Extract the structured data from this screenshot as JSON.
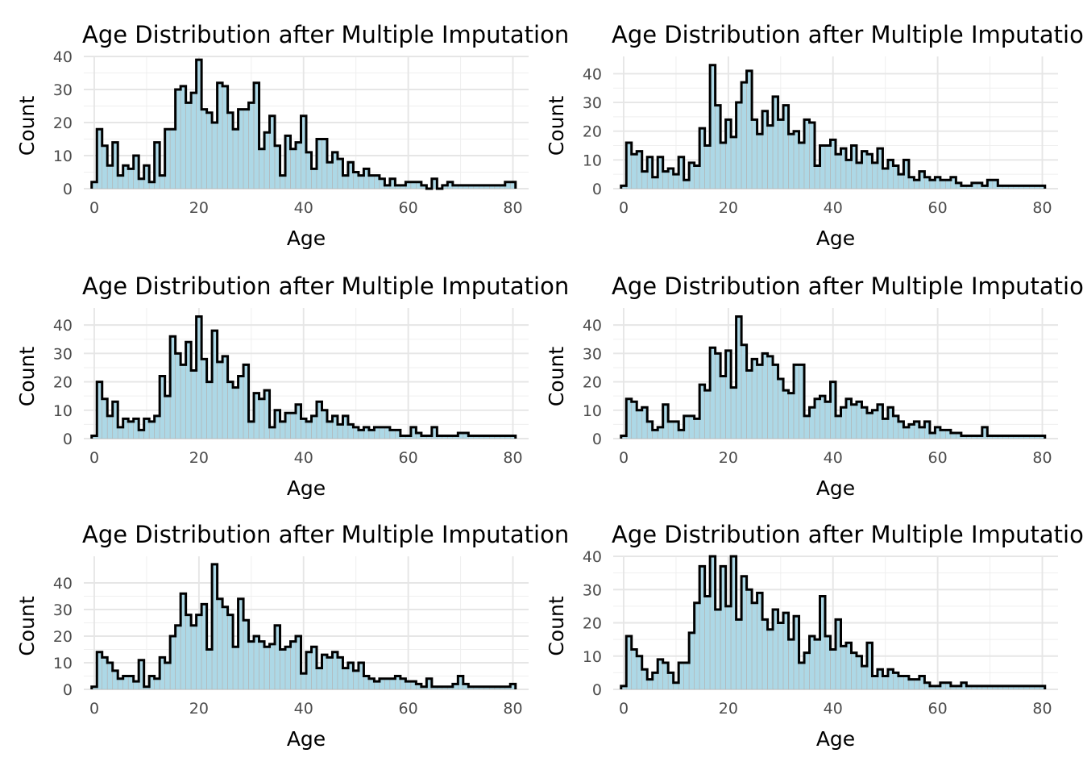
{
  "chart_data": [
    {
      "type": "bar",
      "title": "Age Distribution after Multiple Imputation",
      "xlabel": "Age",
      "ylabel": "Count",
      "xlim": [
        -2,
        83
      ],
      "ylim": [
        0,
        40
      ],
      "xticks": [
        0,
        20,
        40,
        60,
        80
      ],
      "yticks": [
        0,
        10,
        20,
        30,
        40
      ],
      "grid": true,
      "bin_width": 1,
      "x": [
        0,
        1,
        2,
        3,
        4,
        5,
        6,
        7,
        8,
        9,
        10,
        11,
        12,
        13,
        14,
        15,
        16,
        17,
        18,
        19,
        20,
        21,
        22,
        23,
        24,
        25,
        26,
        27,
        28,
        29,
        30,
        31,
        32,
        33,
        34,
        35,
        36,
        37,
        38,
        39,
        40,
        41,
        42,
        43,
        44,
        45,
        46,
        47,
        48,
        49,
        50,
        51,
        52,
        53,
        54,
        55,
        56,
        57,
        58,
        59,
        60,
        61,
        62,
        63,
        64,
        65,
        66,
        67,
        68,
        69,
        70,
        71,
        72,
        73,
        74,
        75,
        76,
        77,
        78,
        79,
        80
      ],
      "values": [
        2,
        18,
        13,
        7,
        14,
        4,
        7,
        6,
        10,
        3,
        7,
        2,
        14,
        4,
        18,
        18,
        30,
        31,
        26,
        29,
        39,
        24,
        23,
        20,
        32,
        31,
        23,
        18,
        24,
        24,
        26,
        32,
        12,
        17,
        22,
        13,
        4,
        16,
        12,
        14,
        22,
        11,
        6,
        15,
        15,
        8,
        11,
        9,
        4,
        8,
        5,
        4,
        6,
        4,
        4,
        3,
        1,
        3,
        1,
        1,
        2,
        2,
        2,
        1,
        0,
        3,
        0,
        1,
        2,
        1,
        1,
        1,
        1,
        1,
        1,
        1,
        1,
        1,
        1,
        2,
        2
      ]
    },
    {
      "type": "bar",
      "title": "Age Distribution after Multiple Imputation",
      "xlabel": "Age",
      "ylabel": "Count",
      "xlim": [
        -2,
        83
      ],
      "ylim": [
        0,
        46
      ],
      "xticks": [
        0,
        20,
        40,
        60,
        80
      ],
      "yticks": [
        0,
        10,
        20,
        30,
        40
      ],
      "grid": true,
      "bin_width": 1,
      "x": [
        0,
        1,
        2,
        3,
        4,
        5,
        6,
        7,
        8,
        9,
        10,
        11,
        12,
        13,
        14,
        15,
        16,
        17,
        18,
        19,
        20,
        21,
        22,
        23,
        24,
        25,
        26,
        27,
        28,
        29,
        30,
        31,
        32,
        33,
        34,
        35,
        36,
        37,
        38,
        39,
        40,
        41,
        42,
        43,
        44,
        45,
        46,
        47,
        48,
        49,
        50,
        51,
        52,
        53,
        54,
        55,
        56,
        57,
        58,
        59,
        60,
        61,
        62,
        63,
        64,
        65,
        66,
        67,
        68,
        69,
        70,
        71,
        72,
        73,
        74,
        75,
        76,
        77,
        78,
        79,
        80
      ],
      "values": [
        1,
        16,
        12,
        13,
        6,
        11,
        4,
        11,
        6,
        7,
        5,
        11,
        3,
        9,
        8,
        21,
        15,
        43,
        29,
        16,
        24,
        18,
        30,
        37,
        41,
        24,
        19,
        27,
        22,
        32,
        24,
        29,
        19,
        20,
        16,
        24,
        23,
        8,
        15,
        15,
        17,
        12,
        14,
        10,
        15,
        9,
        13,
        12,
        9,
        14,
        7,
        10,
        8,
        5,
        10,
        4,
        3,
        6,
        4,
        3,
        4,
        3,
        3,
        4,
        2,
        1,
        1,
        2,
        2,
        1,
        3,
        3,
        1,
        1,
        1,
        1,
        1,
        1,
        1,
        1,
        1
      ]
    },
    {
      "type": "bar",
      "title": "Age Distribution after Multiple Imputation",
      "xlabel": "Age",
      "ylabel": "Count",
      "xlim": [
        -2,
        83
      ],
      "ylim": [
        0,
        46
      ],
      "xticks": [
        0,
        20,
        40,
        60,
        80
      ],
      "yticks": [
        0,
        10,
        20,
        30,
        40
      ],
      "grid": true,
      "bin_width": 1,
      "x": [
        0,
        1,
        2,
        3,
        4,
        5,
        6,
        7,
        8,
        9,
        10,
        11,
        12,
        13,
        14,
        15,
        16,
        17,
        18,
        19,
        20,
        21,
        22,
        23,
        24,
        25,
        26,
        27,
        28,
        29,
        30,
        31,
        32,
        33,
        34,
        35,
        36,
        37,
        38,
        39,
        40,
        41,
        42,
        43,
        44,
        45,
        46,
        47,
        48,
        49,
        50,
        51,
        52,
        53,
        54,
        55,
        56,
        57,
        58,
        59,
        60,
        61,
        62,
        63,
        64,
        65,
        66,
        67,
        68,
        69,
        70,
        71,
        72,
        73,
        74,
        75,
        76,
        77,
        78,
        79,
        80
      ],
      "values": [
        1,
        20,
        14,
        8,
        13,
        4,
        7,
        6,
        7,
        3,
        7,
        6,
        8,
        22,
        15,
        36,
        30,
        26,
        34,
        24,
        43,
        28,
        20,
        38,
        27,
        29,
        20,
        18,
        22,
        26,
        6,
        16,
        14,
        17,
        4,
        10,
        6,
        9,
        9,
        12,
        7,
        6,
        8,
        13,
        10,
        6,
        8,
        5,
        8,
        5,
        4,
        3,
        4,
        3,
        4,
        4,
        4,
        3,
        3,
        1,
        1,
        4,
        2,
        1,
        1,
        4,
        1,
        1,
        1,
        1,
        2,
        2,
        1,
        1,
        1,
        1,
        1,
        1,
        1,
        1,
        1
      ]
    },
    {
      "type": "bar",
      "title": "Age Distribution after Multiple Imputation",
      "xlabel": "Age",
      "ylabel": "Count",
      "xlim": [
        -2,
        83
      ],
      "ylim": [
        0,
        46
      ],
      "xticks": [
        0,
        20,
        40,
        60,
        80
      ],
      "yticks": [
        0,
        10,
        20,
        30,
        40
      ],
      "grid": true,
      "bin_width": 1,
      "x": [
        0,
        1,
        2,
        3,
        4,
        5,
        6,
        7,
        8,
        9,
        10,
        11,
        12,
        13,
        14,
        15,
        16,
        17,
        18,
        19,
        20,
        21,
        22,
        23,
        24,
        25,
        26,
        27,
        28,
        29,
        30,
        31,
        32,
        33,
        34,
        35,
        36,
        37,
        38,
        39,
        40,
        41,
        42,
        43,
        44,
        45,
        46,
        47,
        48,
        49,
        50,
        51,
        52,
        53,
        54,
        55,
        56,
        57,
        58,
        59,
        60,
        61,
        62,
        63,
        64,
        65,
        66,
        67,
        68,
        69,
        70,
        71,
        72,
        73,
        74,
        75,
        76,
        77,
        78,
        79,
        80
      ],
      "values": [
        1,
        14,
        13,
        10,
        11,
        6,
        3,
        4,
        12,
        6,
        6,
        3,
        8,
        8,
        7,
        19,
        17,
        32,
        30,
        22,
        31,
        18,
        43,
        33,
        24,
        28,
        26,
        30,
        29,
        26,
        21,
        17,
        16,
        26,
        26,
        8,
        11,
        14,
        15,
        13,
        20,
        8,
        11,
        14,
        12,
        13,
        11,
        9,
        10,
        12,
        7,
        11,
        8,
        6,
        4,
        5,
        6,
        4,
        6,
        2,
        4,
        3,
        3,
        2,
        2,
        1,
        1,
        1,
        1,
        4,
        1,
        1,
        1,
        1,
        1,
        1,
        1,
        1,
        1,
        1,
        1
      ]
    },
    {
      "type": "bar",
      "title": "Age Distribution after Multiple Imputation",
      "xlabel": "Age",
      "ylabel": "Count",
      "xlim": [
        -2,
        83
      ],
      "ylim": [
        0,
        50
      ],
      "xticks": [
        0,
        20,
        40,
        60,
        80
      ],
      "yticks": [
        0,
        10,
        20,
        30,
        40
      ],
      "grid": true,
      "bin_width": 1,
      "x": [
        0,
        1,
        2,
        3,
        4,
        5,
        6,
        7,
        8,
        9,
        10,
        11,
        12,
        13,
        14,
        15,
        16,
        17,
        18,
        19,
        20,
        21,
        22,
        23,
        24,
        25,
        26,
        27,
        28,
        29,
        30,
        31,
        32,
        33,
        34,
        35,
        36,
        37,
        38,
        39,
        40,
        41,
        42,
        43,
        44,
        45,
        46,
        47,
        48,
        49,
        50,
        51,
        52,
        53,
        54,
        55,
        56,
        57,
        58,
        59,
        60,
        61,
        62,
        63,
        64,
        65,
        66,
        67,
        68,
        69,
        70,
        71,
        72,
        73,
        74,
        75,
        76,
        77,
        78,
        79,
        80
      ],
      "values": [
        1,
        14,
        12,
        10,
        7,
        4,
        5,
        5,
        3,
        11,
        1,
        5,
        4,
        12,
        10,
        20,
        24,
        36,
        28,
        24,
        28,
        32,
        15,
        47,
        34,
        31,
        28,
        16,
        34,
        26,
        18,
        20,
        18,
        16,
        17,
        24,
        15,
        16,
        18,
        20,
        6,
        14,
        16,
        8,
        13,
        12,
        14,
        12,
        8,
        10,
        7,
        10,
        5,
        4,
        3,
        4,
        4,
        4,
        5,
        4,
        3,
        3,
        2,
        1,
        4,
        1,
        1,
        1,
        1,
        2,
        5,
        2,
        1,
        1,
        1,
        1,
        1,
        1,
        1,
        1,
        2
      ]
    },
    {
      "type": "bar",
      "title": "Age Distribution after Multiple Imputation",
      "xlabel": "Age",
      "ylabel": "Count",
      "xlim": [
        -2,
        83
      ],
      "ylim": [
        0,
        40
      ],
      "xticks": [
        0,
        20,
        40,
        60,
        80
      ],
      "yticks": [
        0,
        10,
        20,
        30,
        40
      ],
      "grid": true,
      "bin_width": 1,
      "x": [
        0,
        1,
        2,
        3,
        4,
        5,
        6,
        7,
        8,
        9,
        10,
        11,
        12,
        13,
        14,
        15,
        16,
        17,
        18,
        19,
        20,
        21,
        22,
        23,
        24,
        25,
        26,
        27,
        28,
        29,
        30,
        31,
        32,
        33,
        34,
        35,
        36,
        37,
        38,
        39,
        40,
        41,
        42,
        43,
        44,
        45,
        46,
        47,
        48,
        49,
        50,
        51,
        52,
        53,
        54,
        55,
        56,
        57,
        58,
        59,
        60,
        61,
        62,
        63,
        64,
        65,
        66,
        67,
        68,
        69,
        70,
        71,
        72,
        73,
        74,
        75,
        76,
        77,
        78,
        79,
        80
      ],
      "values": [
        1,
        16,
        12,
        10,
        6,
        3,
        5,
        9,
        8,
        5,
        2,
        8,
        8,
        17,
        26,
        37,
        28,
        40,
        24,
        37,
        25,
        40,
        21,
        34,
        30,
        26,
        29,
        21,
        18,
        24,
        20,
        23,
        15,
        22,
        8,
        11,
        16,
        15,
        28,
        16,
        12,
        21,
        13,
        14,
        11,
        10,
        7,
        14,
        4,
        6,
        4,
        6,
        5,
        4,
        4,
        3,
        3,
        4,
        2,
        1,
        1,
        2,
        2,
        1,
        1,
        2,
        1,
        1,
        1,
        1,
        1,
        1,
        1,
        1,
        1,
        1,
        1,
        1,
        1,
        1,
        1
      ]
    }
  ]
}
